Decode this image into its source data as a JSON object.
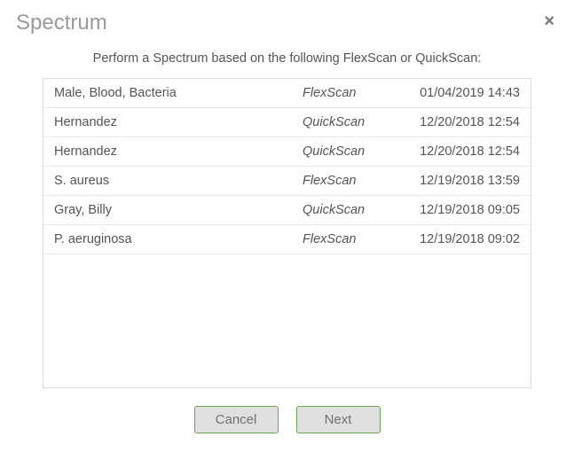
{
  "dialog": {
    "title": "Spectrum",
    "instruction": "Perform a Spectrum based on the following FlexScan or QuickScan:",
    "close_glyph": "×"
  },
  "scans": [
    {
      "name": "Male, Blood, Bacteria",
      "type": "FlexScan",
      "datetime": "01/04/2019 14:43"
    },
    {
      "name": "Hernandez",
      "type": "QuickScan",
      "datetime": "12/20/2018 12:54"
    },
    {
      "name": "Hernandez",
      "type": "QuickScan",
      "datetime": "12/20/2018 12:54"
    },
    {
      "name": "S. aureus",
      "type": "FlexScan",
      "datetime": "12/19/2018 13:59"
    },
    {
      "name": "Gray, Billy",
      "type": "QuickScan",
      "datetime": "12/19/2018 09:05"
    },
    {
      "name": "P. aeruginosa",
      "type": "FlexScan",
      "datetime": "12/19/2018 09:02"
    }
  ],
  "buttons": {
    "cancel": "Cancel",
    "next": "Next"
  },
  "colors": {
    "title_color": "#9a9a9a",
    "text_color": "#555555",
    "row_text": "#545454",
    "border": "#dcdcdc",
    "row_border": "#e8e8e8",
    "button_border": "#6aa84f",
    "button_bg": "#e0e0e0",
    "button_text": "#707070"
  }
}
